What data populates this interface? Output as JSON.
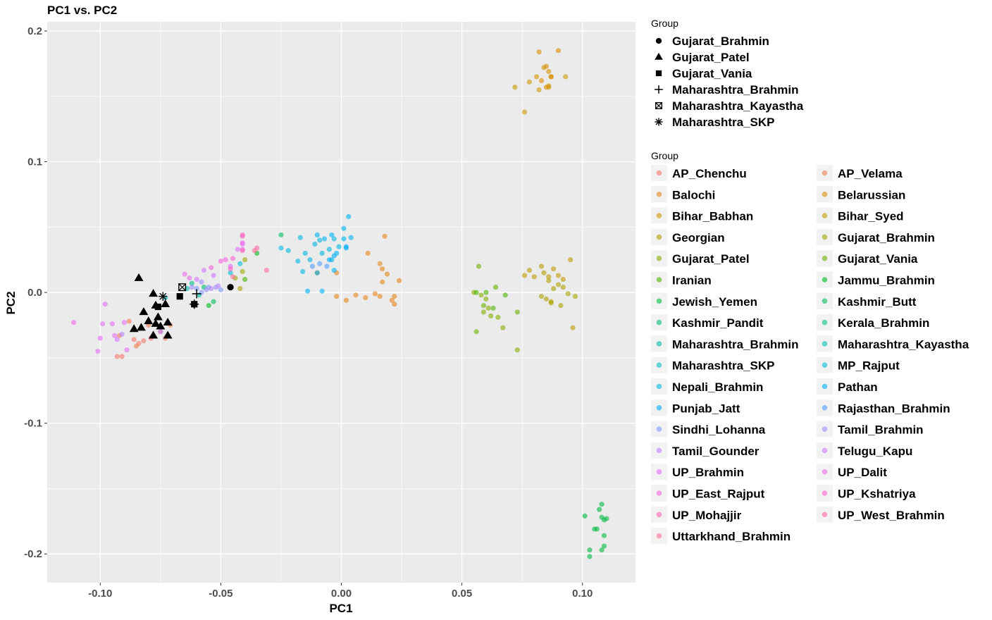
{
  "chart_data": {
    "type": "scatter",
    "title": "PC1 vs. PC2",
    "xlabel": "PC1",
    "ylabel": "PC2",
    "xlim": [
      -0.122,
      0.122
    ],
    "ylim": [
      -0.222,
      0.207
    ],
    "x_ticks": [
      -0.1,
      -0.05,
      0.0,
      0.05,
      0.1
    ],
    "x_tick_labels": [
      "-0.10",
      "-0.05",
      "0.00",
      "0.05",
      "0.10"
    ],
    "y_ticks": [
      -0.2,
      -0.1,
      0.0,
      0.1,
      0.2
    ],
    "y_tick_labels": [
      "-0.2",
      "-0.1",
      "0.0",
      "0.1",
      "0.2"
    ],
    "grid": true,
    "legend_position": "right",
    "shape_legend": {
      "title": "Group",
      "entries": [
        {
          "name": "Gujarat_Brahmin",
          "shape": "circle"
        },
        {
          "name": "Gujarat_Patel",
          "shape": "triangle"
        },
        {
          "name": "Gujarat_Vania",
          "shape": "square"
        },
        {
          "name": "Maharashtra_Brahmin",
          "shape": "plus"
        },
        {
          "name": "Maharashtra_Kayastha",
          "shape": "boxed-x"
        },
        {
          "name": "Maharashtra_SKP",
          "shape": "asterisk"
        }
      ]
    },
    "highlighted": [
      {
        "group": "Gujarat_Brahmin",
        "shape": "circle",
        "points": [
          [
            -0.046,
            0.004
          ]
        ]
      },
      {
        "group": "Gujarat_Patel",
        "shape": "triangle",
        "points": [
          [
            -0.084,
            0.011
          ],
          [
            -0.08,
            -0.022
          ],
          [
            -0.078,
            -0.001
          ],
          [
            -0.077,
            -0.01
          ],
          [
            -0.076,
            -0.019
          ],
          [
            -0.075,
            -0.026
          ],
          [
            -0.073,
            -0.009
          ],
          [
            -0.072,
            -0.023
          ],
          [
            -0.072,
            -0.033
          ],
          [
            -0.078,
            -0.033
          ],
          [
            -0.083,
            -0.027
          ],
          [
            -0.086,
            -0.028
          ],
          [
            -0.082,
            -0.015
          ],
          [
            -0.077,
            -0.024
          ]
        ]
      },
      {
        "group": "Gujarat_Vania",
        "shape": "square",
        "points": [
          [
            -0.061,
            -0.009
          ],
          [
            -0.067,
            -0.003
          ],
          [
            -0.076,
            -0.011
          ]
        ]
      },
      {
        "group": "Maharashtra_Brahmin",
        "shape": "plus",
        "points": [
          [
            -0.06,
            -0.001
          ],
          [
            -0.061,
            -0.009
          ]
        ]
      },
      {
        "group": "Maharashtra_Kayastha",
        "shape": "boxed-x",
        "points": [
          [
            -0.066,
            0.004
          ]
        ]
      },
      {
        "group": "Maharashtra_SKP",
        "shape": "asterisk",
        "points": [
          [
            -0.074,
            -0.003
          ]
        ]
      }
    ],
    "series": [
      {
        "name": "AP_Chenchu",
        "color": "#F8766D",
        "points": [
          [
            -0.093,
            -0.049
          ],
          [
            -0.091,
            -0.049
          ],
          [
            -0.086,
            -0.036
          ],
          [
            -0.082,
            -0.037
          ],
          [
            -0.084,
            -0.039
          ],
          [
            -0.079,
            -0.035
          ]
        ]
      },
      {
        "name": "AP_Velama",
        "color": "#F07F52",
        "points": [
          [
            -0.073,
            -0.035
          ],
          [
            -0.075,
            -0.03
          ],
          [
            -0.071,
            -0.025
          ],
          [
            -0.08,
            -0.025
          ],
          [
            -0.088,
            -0.022
          ],
          [
            -0.085,
            -0.041
          ],
          [
            -0.092,
            -0.033
          ]
        ]
      },
      {
        "name": "Balochi",
        "color": "#E7861B",
        "points": [
          [
            -0.002,
            -0.003
          ],
          [
            0.002,
            -0.006
          ],
          [
            0.006,
            -0.002
          ],
          [
            0.01,
            -0.004
          ],
          [
            0.014,
            -0.001
          ],
          [
            0.016,
            -0.003
          ],
          [
            0.016,
            0.022
          ],
          [
            0.017,
            0.018
          ],
          [
            0.019,
            0.014
          ],
          [
            0.022,
            -0.003
          ],
          [
            0.022,
            -0.009
          ],
          [
            0.024,
            0.009
          ],
          [
            0.021,
            -0.006
          ],
          [
            0.017,
            0.008
          ],
          [
            0.011,
            0.03
          ],
          [
            0.018,
            0.043
          ],
          [
            -0.002,
            0.015
          ],
          [
            -0.01,
            0.015
          ]
        ]
      },
      {
        "name": "Belarussian",
        "color": "#DB8E00",
        "points": [
          [
            0.082,
            0.184
          ],
          [
            0.085,
            0.173
          ],
          [
            0.086,
            0.169
          ],
          [
            0.09,
            0.185
          ],
          [
            0.087,
            0.165
          ],
          [
            0.086,
            0.158
          ],
          [
            0.083,
            0.162
          ],
          [
            0.087,
            0.165
          ],
          [
            0.085,
            0.157
          ]
        ]
      },
      {
        "name": "Bihar_Babhan",
        "color": "#CE9600",
        "points": [
          [
            0.081,
            0.165
          ],
          [
            0.084,
            0.172
          ],
          [
            0.072,
            0.157
          ],
          [
            0.078,
            0.161
          ],
          [
            0.076,
            0.138
          ],
          [
            0.082,
            0.155
          ],
          [
            0.086,
            0.157
          ],
          [
            0.093,
            0.165
          ]
        ]
      },
      {
        "name": "Bihar_Syed",
        "color": "#BE9C00",
        "points": [
          [
            0.076,
            0.013
          ],
          [
            0.078,
            0.017
          ],
          [
            0.08,
            0.012
          ],
          [
            0.083,
            0.02
          ],
          [
            0.086,
            0.012
          ],
          [
            0.088,
            0.018
          ],
          [
            0.09,
            0.013
          ],
          [
            0.092,
            0.01
          ],
          [
            0.095,
            0.025
          ],
          [
            0.096,
            -0.027
          ]
        ]
      },
      {
        "name": "Georgian",
        "color": "#AEA200",
        "points": [
          [
            0.084,
            0.015
          ],
          [
            0.086,
            0.009
          ],
          [
            0.088,
            0.003
          ],
          [
            0.09,
            0.006
          ],
          [
            0.085,
            -0.005
          ],
          [
            0.087,
            -0.008
          ],
          [
            0.092,
            0.004
          ],
          [
            0.094,
            -0.001
          ],
          [
            0.097,
            -0.003
          ],
          [
            0.083,
            -0.003
          ],
          [
            0.087,
            -0.007
          ],
          [
            0.091,
            -0.01
          ],
          [
            -0.042,
            0.003
          ]
        ]
      },
      {
        "name": "Gujarat_Brahmin",
        "color": "#9CA700",
        "points": [
          [
            -0.041,
            0.016
          ],
          [
            -0.044,
            0.011
          ],
          [
            -0.04,
            0.025
          ]
        ]
      },
      {
        "name": "Gujarat_Patel",
        "color": "#85AD00",
        "points": [
          [
            0.055,
            0.0
          ],
          [
            0.058,
            -0.002
          ],
          [
            0.06,
            -0.005
          ],
          [
            0.061,
            -0.012
          ],
          [
            0.062,
            -0.018
          ],
          [
            0.065,
            -0.019
          ],
          [
            0.067,
            -0.027
          ],
          [
            0.073,
            -0.044
          ],
          [
            0.059,
            -0.015
          ]
        ]
      },
      {
        "name": "Gujarat_Vania",
        "color": "#6BB100",
        "points": [
          [
            0.057,
            0.02
          ],
          [
            0.056,
            -0.03
          ],
          [
            0.064,
            0.004
          ],
          [
            0.073,
            -0.015
          ],
          [
            0.059,
            -0.01
          ]
        ]
      },
      {
        "name": "Iranian",
        "color": "#49B500",
        "points": [
          [
            0.056,
            0.0
          ],
          [
            0.06,
            0.0
          ],
          [
            0.063,
            -0.012
          ],
          [
            0.068,
            -0.002
          ],
          [
            -0.04,
            0.01
          ]
        ]
      },
      {
        "name": "Jammu_Brahmin",
        "color": "#00B81F",
        "points": [
          [
            -0.035,
            0.03
          ],
          [
            -0.055,
            -0.01
          ]
        ]
      },
      {
        "name": "Jewish_Yemen",
        "color": "#00BA42",
        "points": [
          [
            0.101,
            -0.171
          ],
          [
            0.103,
            -0.197
          ],
          [
            0.103,
            -0.202
          ],
          [
            0.105,
            -0.181
          ],
          [
            0.106,
            -0.181
          ],
          [
            0.107,
            -0.166
          ],
          [
            0.108,
            -0.172
          ],
          [
            0.108,
            -0.162
          ],
          [
            0.109,
            -0.174
          ],
          [
            0.11,
            -0.173
          ],
          [
            0.109,
            -0.186
          ],
          [
            0.109,
            -0.194
          ],
          [
            0.108,
            -0.197
          ]
        ]
      },
      {
        "name": "Kashmir_Butt",
        "color": "#00BC5B",
        "points": [
          [
            -0.025,
            0.044
          ],
          [
            -0.053,
            -0.007
          ]
        ]
      },
      {
        "name": "Kashmir_Pandit",
        "color": "#00BE71",
        "points": [
          [
            -0.057,
            0.004
          ]
        ]
      },
      {
        "name": "Kerala_Brahmin",
        "color": "#00BF87",
        "points": [
          [
            -0.062,
            0.007
          ]
        ]
      },
      {
        "name": "Maharashtra_Brahmin",
        "color": "#00C09B",
        "points": [
          [
            -0.059,
            -0.002
          ]
        ]
      },
      {
        "name": "Maharashtra_Kayastha",
        "color": "#00C0AF",
        "points": [
          [
            -0.064,
            0.003
          ]
        ]
      },
      {
        "name": "Maharashtra_SKP",
        "color": "#00BFC2",
        "points": [
          [
            -0.073,
            -0.004
          ]
        ]
      },
      {
        "name": "MP_Rajput",
        "color": "#00BCD4",
        "points": [
          [
            -0.042,
            0.022
          ],
          [
            -0.046,
            0.015
          ]
        ]
      },
      {
        "name": "Nepali_Brahmin",
        "color": "#00B8E4",
        "points": [
          [
            -0.025,
            0.034
          ],
          [
            -0.022,
            0.032
          ],
          [
            -0.018,
            0.024
          ],
          [
            -0.017,
            0.042
          ],
          [
            -0.015,
            0.03
          ],
          [
            -0.016,
            0.016
          ],
          [
            -0.013,
            0.025
          ],
          [
            -0.011,
            0.037
          ],
          [
            -0.009,
            0.04
          ],
          [
            -0.008,
            0.03
          ],
          [
            -0.005,
            0.033
          ],
          [
            -0.004,
            0.025
          ],
          [
            -0.003,
            0.041
          ],
          [
            -0.001,
            0.035
          ]
        ]
      },
      {
        "name": "Pathan",
        "color": "#00B2F3",
        "points": [
          [
            -0.01,
            0.044
          ],
          [
            -0.007,
            0.041
          ],
          [
            -0.004,
            0.044
          ],
          [
            -0.002,
            0.03
          ],
          [
            0.002,
            0.034
          ],
          [
            0.001,
            0.041
          ],
          [
            0.003,
            0.058
          ],
          [
            0.004,
            0.042
          ],
          [
            -0.014,
            0.001
          ],
          [
            -0.008,
            0.001
          ],
          [
            -0.003,
            0.017
          ],
          [
            -0.01,
            0.015
          ],
          [
            0.001,
            0.049
          ]
        ]
      },
      {
        "name": "Punjab_Jatt",
        "color": "#00ABFD",
        "points": [
          [
            -0.005,
            0.025
          ],
          [
            -0.003,
            0.028
          ],
          [
            0.002,
            0.035
          ]
        ]
      },
      {
        "name": "Rajasthan_Brahmin",
        "color": "#529EFF",
        "points": [
          [
            -0.012,
            0.02
          ],
          [
            -0.009,
            0.022
          ],
          [
            -0.006,
            0.02
          ]
        ]
      },
      {
        "name": "Sindhi_Lohanna",
        "color": "#7F96FF",
        "points": [
          [
            -0.05,
            0.002
          ],
          [
            -0.055,
            0.004
          ],
          [
            -0.058,
            0.0
          ],
          [
            -0.06,
            0.003
          ]
        ]
      },
      {
        "name": "Tamil_Brahmin",
        "color": "#9F8CFF",
        "points": [
          [
            -0.062,
            0.004
          ],
          [
            -0.058,
            0.008
          ],
          [
            -0.056,
            0.002
          ],
          [
            -0.052,
            0.004
          ]
        ]
      },
      {
        "name": "Tamil_Gounder",
        "color": "#B983FF",
        "points": [
          [
            -0.054,
            0.003
          ],
          [
            -0.051,
            0.005
          ],
          [
            -0.075,
            -0.03
          ],
          [
            -0.091,
            -0.032
          ]
        ]
      },
      {
        "name": "Telugu_Kapu",
        "color": "#CF78FF",
        "points": [
          [
            -0.06,
            0.01
          ],
          [
            -0.053,
            0.013
          ],
          [
            -0.057,
            0.017
          ],
          [
            -0.093,
            -0.036
          ]
        ]
      },
      {
        "name": "UP_Brahmin",
        "color": "#E26EF7",
        "points": [
          [
            -0.101,
            -0.045
          ],
          [
            -0.1,
            -0.035
          ],
          [
            -0.098,
            -0.009
          ],
          [
            -0.099,
            -0.024
          ],
          [
            -0.095,
            -0.024
          ],
          [
            -0.094,
            -0.033
          ],
          [
            -0.09,
            -0.023
          ],
          [
            -0.089,
            -0.044
          ],
          [
            -0.043,
            0.033
          ],
          [
            -0.041,
            0.037
          ],
          [
            -0.046,
            0.02
          ]
        ]
      },
      {
        "name": "UP_Dalit",
        "color": "#EF67EB",
        "points": [
          [
            -0.111,
            -0.023
          ],
          [
            -0.065,
            0.014
          ],
          [
            -0.063,
            0.011
          ],
          [
            -0.041,
            0.033
          ],
          [
            -0.041,
            0.038
          ]
        ]
      },
      {
        "name": "UP_East_Rajput",
        "color": "#F863DF",
        "points": [
          [
            -0.048,
            0.025
          ],
          [
            -0.054,
            0.019
          ],
          [
            -0.05,
            0.024
          ],
          [
            -0.041,
            0.043
          ]
        ]
      },
      {
        "name": "UP_Kshatriya",
        "color": "#FE61CF",
        "points": [
          [
            -0.045,
            0.026
          ],
          [
            -0.046,
            0.018
          ]
        ]
      },
      {
        "name": "UP_Mohajjir",
        "color": "#FF62BC",
        "points": [
          [
            -0.041,
            0.044
          ],
          [
            -0.041,
            0.032
          ]
        ]
      },
      {
        "name": "UP_West_Brahmin",
        "color": "#FF66A8",
        "points": [
          [
            -0.035,
            0.034
          ],
          [
            -0.031,
            0.017
          ]
        ]
      },
      {
        "name": "Uttarkhand_Brahmin",
        "color": "#FF6C91",
        "points": [
          [
            -0.036,
            0.032
          ],
          [
            -0.045,
            0.012
          ]
        ]
      }
    ],
    "color_legend": {
      "title": "Group"
    }
  }
}
